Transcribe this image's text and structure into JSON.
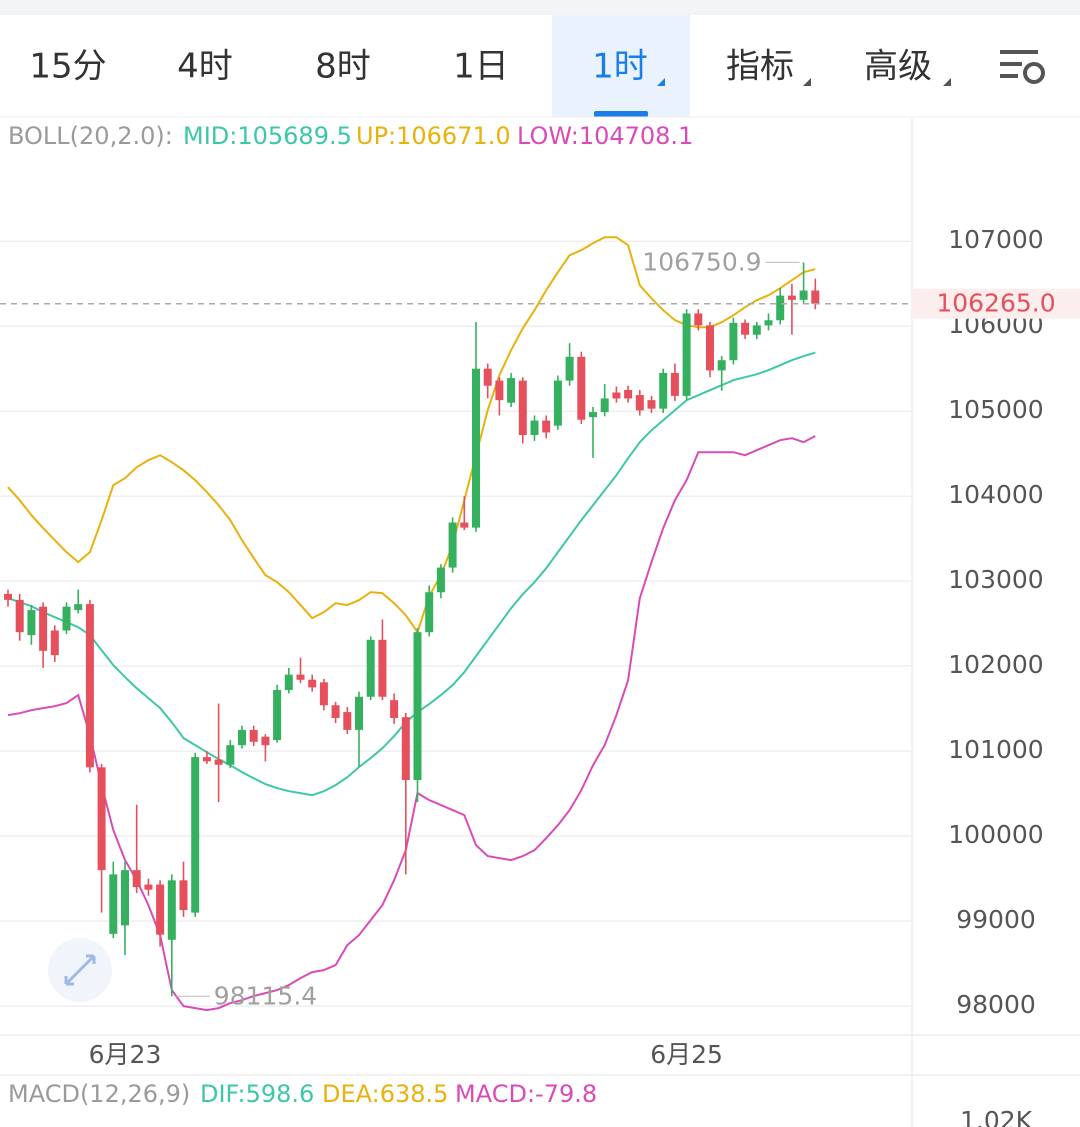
{
  "tabs": {
    "items": [
      "15分",
      "4时",
      "8时",
      "1日",
      "1时",
      "指标",
      "高级"
    ],
    "selected": 4
  },
  "chart_data": {
    "type": "candlestick",
    "indicator": "BOLL(20,2.0):",
    "categories": [
      null,
      null,
      null,
      null,
      null,
      null,
      null,
      null,
      null,
      null,
      "6月23",
      null,
      null,
      null,
      null,
      null,
      null,
      null,
      null,
      null,
      null,
      null,
      null,
      null,
      null,
      null,
      null,
      null,
      null,
      null,
      null,
      null,
      null,
      null,
      null,
      null,
      null,
      null,
      null,
      null,
      null,
      null,
      null,
      null,
      null,
      null,
      null,
      null,
      null,
      null,
      null,
      null,
      null,
      null,
      null,
      null,
      null,
      null,
      "6月25",
      null,
      null,
      null,
      null,
      null,
      null,
      null,
      null,
      null,
      null,
      null
    ],
    "open": [
      102850,
      102780,
      102365,
      102700,
      102420,
      102420,
      102660,
      102730,
      100810,
      98850,
      98950,
      99600,
      99430,
      99430,
      98780,
      99480,
      99100,
      100930,
      100900,
      100840,
      101070,
      101250,
      101170,
      101130,
      101720,
      101900,
      101840,
      101810,
      101540,
      101460,
      101250,
      101640,
      102310,
      101600,
      101400,
      100660,
      102400,
      102870,
      103160,
      103690,
      103630,
      105500,
      105360,
      105100,
      105360,
      104720,
      104890,
      104830,
      105360,
      105640,
      104930,
      104990,
      105220,
      105250,
      105190,
      105130,
      105030,
      105450,
      105180,
      106150,
      106010,
      105480,
      105600,
      106040,
      105900,
      106010,
      106070,
      106360,
      106310,
      106420
    ],
    "high": [
      102900,
      102850,
      102720,
      102750,
      102480,
      102750,
      102900,
      102780,
      100850,
      99700,
      99700,
      100370,
      99500,
      99480,
      99550,
      99700,
      100980,
      101000,
      101560,
      101130,
      101300,
      101300,
      101200,
      101780,
      101980,
      102100,
      101900,
      101850,
      101580,
      101520,
      101700,
      102350,
      102550,
      101680,
      101450,
      102450,
      102950,
      103200,
      103750,
      104000,
      106050,
      105560,
      105400,
      105450,
      105400,
      104950,
      104950,
      105420,
      105800,
      105700,
      105050,
      105320,
      105290,
      105300,
      105250,
      105180,
      105500,
      105560,
      106200,
      106200,
      106050,
      105650,
      106100,
      106080,
      106050,
      106150,
      106450,
      106500,
      106750.9,
      106560
    ],
    "low": [
      102700,
      102300,
      102250,
      101980,
      102050,
      102380,
      102620,
      100750,
      99100,
      98800,
      98600,
      99330,
      99300,
      98700,
      98115.4,
      99050,
      99050,
      100850,
      100400,
      100800,
      101030,
      101060,
      100880,
      101100,
      101680,
      101800,
      101700,
      101480,
      101330,
      101200,
      100820,
      101600,
      101600,
      101320,
      99550,
      100400,
      102350,
      102800,
      103100,
      103600,
      103580,
      105150,
      104950,
      105050,
      104620,
      104650,
      104680,
      104780,
      105300,
      104850,
      104450,
      104940,
      105100,
      105100,
      104950,
      104980,
      104980,
      105120,
      105130,
      105950,
      105400,
      105240,
      105550,
      105850,
      105850,
      105950,
      106020,
      105900,
      106260,
      106200
    ],
    "close": [
      102780,
      102400,
      102660,
      102180,
      102130,
      102700,
      102730,
      100810,
      99600,
      99550,
      99600,
      99400,
      99370,
      98840,
      99480,
      99130,
      100930,
      100880,
      100840,
      101070,
      101250,
      101110,
      101070,
      101720,
      101900,
      101840,
      101750,
      101540,
      101390,
      101250,
      101640,
      102310,
      101640,
      101390,
      100660,
      102400,
      102870,
      103160,
      103690,
      103630,
      105500,
      105300,
      105130,
      105390,
      104720,
      104890,
      104750,
      105360,
      105640,
      104900,
      104990,
      105150,
      105150,
      105150,
      105010,
      105030,
      105450,
      105180,
      106150,
      106010,
      105480,
      105600,
      106040,
      105900,
      106010,
      106070,
      106360,
      106310,
      106420,
      106265
    ],
    "up_color": "#35b05e",
    "down_color": "#e5505c",
    "series": [
      {
        "name": "MID:105689.5",
        "color": "#3cc8a8",
        "values": [
          102800,
          102753,
          102706,
          102635,
          102576,
          102518,
          102459,
          102365,
          102188,
          102012,
          101871,
          101741,
          101624,
          101506,
          101341,
          101153,
          101071,
          100988,
          100906,
          100835,
          100753,
          100682,
          100612,
          100565,
          100529,
          100506,
          100482,
          100529,
          100600,
          100694,
          100812,
          100918,
          101035,
          101176,
          101341,
          101459,
          101553,
          101659,
          101776,
          101929,
          102118,
          102306,
          102494,
          102682,
          102847,
          102988,
          103153,
          103341,
          103529,
          103718,
          103894,
          104071,
          104247,
          104447,
          104635,
          104776,
          104894,
          105012,
          105129,
          105188,
          105247,
          105306,
          105365,
          105400,
          105435,
          105482,
          105541,
          105600,
          105647,
          105689.5
        ]
      },
      {
        "name": "UP:106671.0",
        "color": "#e8b10c",
        "values": [
          104106,
          103953,
          103776,
          103624,
          103482,
          103341,
          103224,
          103341,
          103718,
          104129,
          104212,
          104341,
          104424,
          104482,
          104400,
          104306,
          104188,
          104047,
          103894,
          103718,
          103482,
          103271,
          103071,
          102988,
          102871,
          102718,
          102565,
          102635,
          102741,
          102718,
          102776,
          102871,
          102859,
          102741,
          102600,
          102400,
          102824,
          103071,
          103424,
          103953,
          104482,
          105012,
          105424,
          105718,
          105976,
          106188,
          106424,
          106635,
          106835,
          106894,
          106976,
          107047,
          107047,
          106953,
          106482,
          106329,
          106188,
          106071,
          106012,
          105988,
          105988,
          106047,
          106129,
          106224,
          106306,
          106365,
          106447,
          106541,
          106635,
          106671
        ]
      },
      {
        "name": "LOW:104708.1",
        "color": "#d94bb8",
        "values": [
          101424,
          101447,
          101482,
          101506,
          101529,
          101565,
          101659,
          101188,
          100600,
          100071,
          99718,
          99482,
          99188,
          98835,
          98188,
          98000,
          97976,
          97953,
          97976,
          98035,
          98071,
          98118,
          98153,
          98188,
          98247,
          98329,
          98400,
          98424,
          98482,
          98718,
          98835,
          99012,
          99188,
          99482,
          99835,
          100506,
          100424,
          100365,
          100306,
          100247,
          99894,
          99765,
          99741,
          99718,
          99765,
          99835,
          99976,
          100129,
          100306,
          100541,
          100835,
          101071,
          101424,
          101835,
          102800,
          103224,
          103624,
          103953,
          104188,
          104518,
          104518,
          104518,
          104518,
          104482,
          104541,
          104600,
          104659,
          104682,
          104635,
          104708.1
        ]
      }
    ],
    "ylim": [
      97660,
      108450
    ],
    "yticks": [
      98000,
      99000,
      100000,
      101000,
      102000,
      103000,
      104000,
      105000,
      106000,
      107000
    ],
    "grid": true,
    "last_price": {
      "value": 106265,
      "label": "106265.0"
    },
    "max_label": 106750.9,
    "min_label": 98115.4
  },
  "macd": {
    "title": "MACD(12,26,9)",
    "items": [
      {
        "text": "DIF:598.6",
        "color": "#3cc8a8"
      },
      {
        "text": "DEA:638.5",
        "color": "#e8b10c"
      },
      {
        "text": "MACD:-79.8",
        "color": "#d94bb8"
      }
    ],
    "axis_label": "1.02K"
  }
}
